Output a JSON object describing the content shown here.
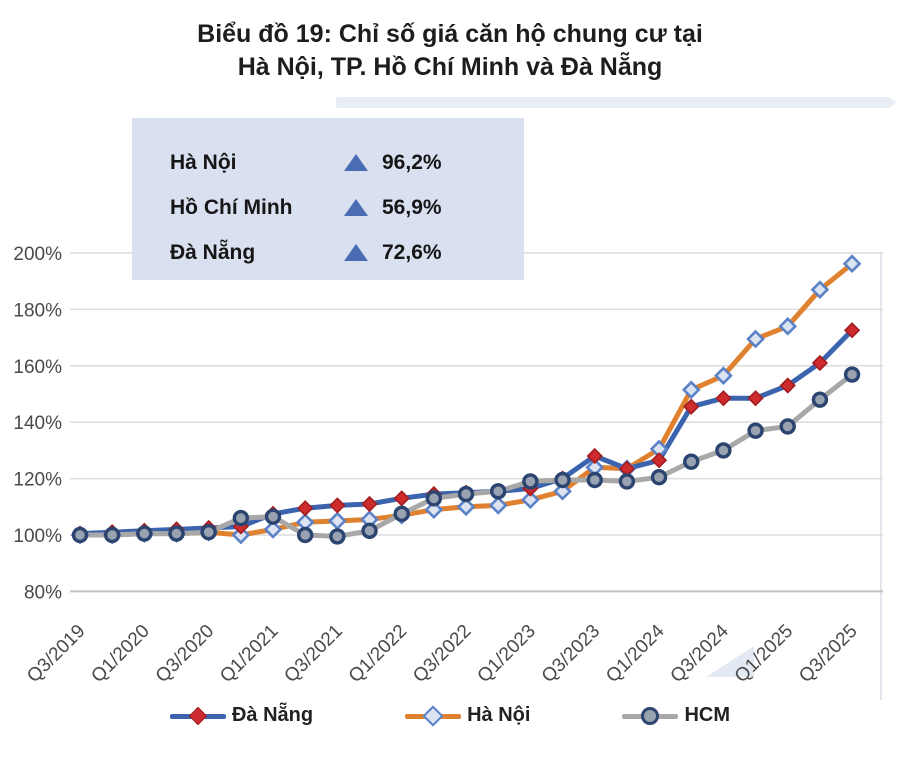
{
  "title": {
    "line1": "Biểu đồ 19: Chỉ số giá căn hộ chung cư tại",
    "line2": "Hà Nội, TP. Hồ Chí Minh và Đà Nẵng"
  },
  "summary_box": {
    "items": [
      {
        "label": "Hà Nội",
        "value": "96,2%"
      },
      {
        "label": "Hồ Chí Minh",
        "value": "56,9%"
      },
      {
        "label": "Đà Nẵng",
        "value": "72,6%"
      }
    ],
    "triangle_icon_color": "#4a6cb3",
    "background": "#d9e0ef"
  },
  "chart_data": {
    "type": "line",
    "title": "Biểu đồ 19: Chỉ số giá căn hộ chung cư tại Hà Nội, TP. Hồ Chí Minh và Đà Nẵng",
    "xlabel": "",
    "ylabel": "",
    "ylim": [
      80,
      200
    ],
    "yticks": [
      200,
      180,
      160,
      140,
      120,
      100,
      80
    ],
    "ytick_suffix": "%",
    "grid": "horizontal",
    "legend_position": "bottom",
    "x": [
      "Q3/2019",
      "Q4/2019",
      "Q1/2020",
      "Q2/2020",
      "Q3/2020",
      "Q4/2020",
      "Q1/2021",
      "Q2/2021",
      "Q3/2021",
      "Q4/2021",
      "Q1/2022",
      "Q2/2022",
      "Q3/2022",
      "Q4/2022",
      "Q1/2023",
      "Q2/2023",
      "Q3/2023",
      "Q4/2023",
      "Q1/2024",
      "Q2/2024",
      "Q3/2024",
      "Q4/2024",
      "Q1/2025",
      "Q2/2025",
      "Q3/2025"
    ],
    "x_tick_every": 2,
    "x_tick_labels": [
      "Q3/2019",
      "Q1/2020",
      "Q3/2020",
      "Q1/2021",
      "Q3/2021",
      "Q1/2022",
      "Q3/2022",
      "Q1/2023",
      "Q3/2023",
      "Q1/2024",
      "Q3/2024",
      "Q1/2025",
      "Q3/2025"
    ],
    "series": [
      {
        "id": "hanoi",
        "name": "Hà Nội",
        "change_label": "96,2%",
        "line_color": "#E0812F",
        "marker": "diamond",
        "marker_fill": "#DCE3F1",
        "marker_stroke": "#5B82C6",
        "values": [
          100,
          100,
          100.5,
          100.5,
          101,
          100,
          102,
          104.5,
          105,
          105.5,
          107,
          109,
          110,
          110.5,
          112.5,
          115.5,
          124,
          123.5,
          130.5,
          151.5,
          156.5,
          169.5,
          174,
          187,
          196.2
        ]
      },
      {
        "id": "danang",
        "name": "Đà Nẵng",
        "change_label": "72,6%",
        "line_color": "#3C64AE",
        "marker": "diamond",
        "marker_fill": "#CE2B2E",
        "marker_stroke": "#A21D20",
        "values": [
          100.5,
          101,
          101.5,
          102,
          102.5,
          103,
          107.5,
          109.5,
          110.5,
          111,
          113,
          114.5,
          115,
          115.5,
          116.5,
          120,
          128,
          123.5,
          126.5,
          145.5,
          148.5,
          148.5,
          153,
          161,
          172.6
        ]
      },
      {
        "id": "hcm",
        "name": "HCM",
        "change_label": "56,9%",
        "line_color": "#A8A8A8",
        "marker": "circle",
        "marker_fill": "#99A2B0",
        "marker_stroke": "#2B4570",
        "values": [
          100,
          100,
          100.5,
          100.5,
          101,
          106,
          106.5,
          100,
          99.5,
          101.5,
          107.5,
          113,
          114.5,
          115.5,
          119,
          119.5,
          119.5,
          119,
          120.5,
          126,
          130,
          137,
          138.5,
          148,
          156.9
        ]
      }
    ]
  },
  "bottom_legend": [
    {
      "label": "Đà Nẵng"
    },
    {
      "label": "Hà Nội"
    },
    {
      "label": "HCM"
    }
  ],
  "colors": {
    "gridline": "#dcdcdc",
    "baseline_80": "#c3c3c3",
    "axis_text": "#4a4a4a"
  }
}
